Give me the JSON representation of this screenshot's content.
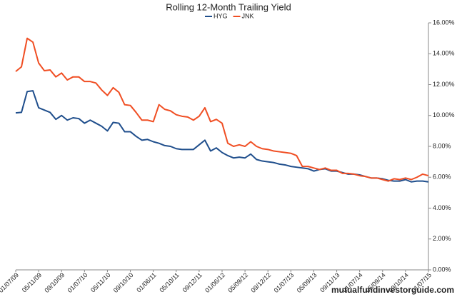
{
  "chart_data": {
    "type": "line",
    "title": "Rolling 12-Month Trailing Yield",
    "watermark": "mutualfundinvestorguide.com",
    "categories": [
      "01/07/09",
      null,
      null,
      null,
      "05/11/09",
      null,
      null,
      null,
      "09/10/09",
      null,
      null,
      null,
      "01/07/10",
      null,
      null,
      null,
      "05/11/10",
      null,
      null,
      null,
      "09/10/10",
      null,
      null,
      null,
      "01/06/11",
      null,
      null,
      null,
      "05/10/11",
      null,
      null,
      null,
      "09/12/11",
      null,
      null,
      null,
      "01/06/12",
      null,
      null,
      null,
      "05/09/12",
      null,
      null,
      null,
      "09/12/12",
      null,
      null,
      null,
      "01/07/13",
      null,
      null,
      null,
      "05/09/13",
      null,
      null,
      null,
      "09/11/13",
      null,
      null,
      null,
      "01/07/14",
      null,
      null,
      null,
      "05/09/14",
      null,
      null,
      null,
      "09/10/14",
      null,
      null,
      null,
      "01/07/15"
    ],
    "series": [
      {
        "name": "HYG",
        "color": "#1f4e8c",
        "values": [
          10.17,
          10.2,
          11.55,
          11.6,
          10.5,
          10.35,
          10.2,
          9.75,
          10.0,
          9.7,
          9.85,
          9.8,
          9.5,
          9.7,
          9.5,
          9.3,
          9.0,
          9.55,
          9.5,
          8.95,
          8.95,
          8.65,
          8.4,
          8.45,
          8.3,
          8.2,
          8.05,
          8.0,
          7.85,
          7.8,
          7.8,
          7.8,
          8.1,
          8.4,
          7.7,
          7.9,
          7.6,
          7.4,
          7.25,
          7.3,
          7.25,
          7.5,
          7.15,
          7.05,
          7.0,
          6.95,
          6.85,
          6.8,
          6.7,
          6.65,
          6.6,
          6.55,
          6.4,
          6.5,
          6.55,
          6.4,
          6.4,
          6.3,
          6.2,
          6.2,
          6.15,
          6.05,
          5.95,
          5.95,
          5.9,
          5.8,
          5.75,
          5.75,
          5.85,
          5.7,
          5.75,
          5.75,
          5.7
        ]
      },
      {
        "name": "JNK",
        "color": "#f04e23",
        "values": [
          12.85,
          13.15,
          15.0,
          14.75,
          13.4,
          12.9,
          12.95,
          12.5,
          12.75,
          12.3,
          12.5,
          12.5,
          12.2,
          12.2,
          12.1,
          11.65,
          11.3,
          11.8,
          11.5,
          10.7,
          10.65,
          10.2,
          9.7,
          9.7,
          9.6,
          10.7,
          10.4,
          10.3,
          10.05,
          9.95,
          9.9,
          9.7,
          9.95,
          10.5,
          9.6,
          9.75,
          9.5,
          8.2,
          8.0,
          8.1,
          8.0,
          8.3,
          8.0,
          7.85,
          7.8,
          7.7,
          7.65,
          7.6,
          7.55,
          7.4,
          6.7,
          6.7,
          6.6,
          6.5,
          6.6,
          6.45,
          6.45,
          6.25,
          6.25,
          6.2,
          6.1,
          6.05,
          5.95,
          5.95,
          5.85,
          5.75,
          5.9,
          5.85,
          5.95,
          5.85,
          6.0,
          6.2,
          6.1
        ]
      }
    ],
    "ylim": [
      0,
      16
    ],
    "yticks": [
      {
        "value": 0,
        "label": "0.00%"
      },
      {
        "value": 2,
        "label": "2.00%"
      },
      {
        "value": 4,
        "label": "4.00%"
      },
      {
        "value": 6,
        "label": "6.00%"
      },
      {
        "value": 8,
        "label": "8.00%"
      },
      {
        "value": 10,
        "label": "10.00%"
      },
      {
        "value": 12,
        "label": "12.00%"
      },
      {
        "value": 14,
        "label": "14.00%"
      },
      {
        "value": 16,
        "label": "16.00%"
      }
    ],
    "y_axis_side": "right",
    "grid": false,
    "legend": "top"
  }
}
